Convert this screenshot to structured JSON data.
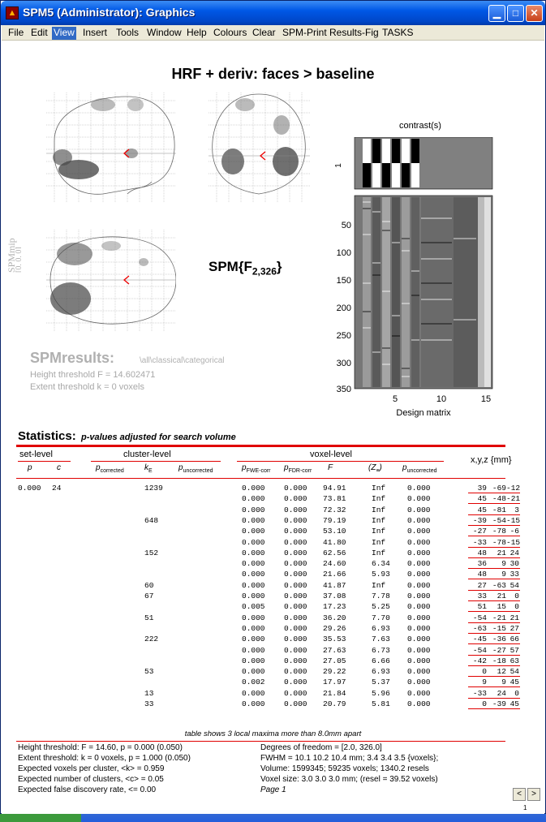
{
  "window": {
    "title": "SPM5 (Administrator): Graphics",
    "icon": "matlab-icon"
  },
  "menu": [
    "File",
    "Edit",
    "View",
    "Insert",
    "Tools",
    "Window",
    "Help",
    "Colours",
    "Clear",
    "SPM-Print",
    "Results-Fig",
    "TASKS"
  ],
  "menu_active": "View",
  "figure": {
    "title": "HRF + deriv: faces > baseline",
    "spmmip": "SPMmip",
    "coords": "[0, 0, 0]",
    "stat_base": "SPM{F",
    "stat_sub": "2,326",
    "stat_close": "}",
    "results_title": "SPMresults:",
    "results_path": "\\all\\classical\\categorical",
    "height_threshold": "Height threshold F = 14.602471",
    "extent_threshold": "Extent threshold k = 0 voxels"
  },
  "design": {
    "contrast_label": "contrast(s)",
    "contrast_row": "1",
    "yticks": [
      "50",
      "100",
      "150",
      "200",
      "250",
      "300",
      "350"
    ],
    "xticks": [
      "5",
      "10",
      "15"
    ],
    "xlabel": "Design matrix"
  },
  "stats": {
    "title": "Statistics:",
    "subtitle": "p-values adjusted for search volume",
    "set_level": "set-level",
    "cluster_level": "cluster-level",
    "voxel_level": "voxel-level",
    "xyz": "x,y,z {mm}",
    "col_p": "p",
    "col_c": "c",
    "col_pcorr": "p",
    "col_pcorr_sub": "corrected",
    "col_ke": "k",
    "col_ke_sub": "E",
    "col_punc": "p",
    "col_punc_sub": "uncorrected",
    "col_pfwe": "p",
    "col_pfwe_sub": "FWE-corr",
    "col_pfdr": "p",
    "col_pfdr_sub": "FDR-corr",
    "col_f": "F",
    "col_z": "(Z",
    "col_z_sub": "≡",
    "col_z_close": ")",
    "col_vpunc": "p",
    "col_vpunc_sub": "uncorrected",
    "rows": [
      {
        "sp": "0.000",
        "sc": "24",
        "ke": "1239",
        "fwe": "0.000",
        "fdr": "0.000",
        "f": "94.91",
        "z": "Inf",
        "pu": "0.000",
        "x": "39",
        "y": "-69",
        "zz": "-12"
      },
      {
        "sp": "",
        "sc": "",
        "ke": "",
        "fwe": "0.000",
        "fdr": "0.000",
        "f": "73.81",
        "z": "Inf",
        "pu": "0.000",
        "x": "45",
        "y": "-48",
        "zz": "-21"
      },
      {
        "sp": "",
        "sc": "",
        "ke": "",
        "fwe": "0.000",
        "fdr": "0.000",
        "f": "72.32",
        "z": "Inf",
        "pu": "0.000",
        "x": "45",
        "y": "-81",
        "zz": "3"
      },
      {
        "sp": "",
        "sc": "",
        "ke": "648",
        "fwe": "0.000",
        "fdr": "0.000",
        "f": "79.19",
        "z": "Inf",
        "pu": "0.000",
        "x": "-39",
        "y": "-54",
        "zz": "-15"
      },
      {
        "sp": "",
        "sc": "",
        "ke": "",
        "fwe": "0.000",
        "fdr": "0.000",
        "f": "53.10",
        "z": "Inf",
        "pu": "0.000",
        "x": "-27",
        "y": "-78",
        "zz": "-6"
      },
      {
        "sp": "",
        "sc": "",
        "ke": "",
        "fwe": "0.000",
        "fdr": "0.000",
        "f": "41.80",
        "z": "Inf",
        "pu": "0.000",
        "x": "-33",
        "y": "-78",
        "zz": "-15"
      },
      {
        "sp": "",
        "sc": "",
        "ke": "152",
        "fwe": "0.000",
        "fdr": "0.000",
        "f": "62.56",
        "z": "Inf",
        "pu": "0.000",
        "x": "48",
        "y": "21",
        "zz": "24"
      },
      {
        "sp": "",
        "sc": "",
        "ke": "",
        "fwe": "0.000",
        "fdr": "0.000",
        "f": "24.60",
        "z": "6.34",
        "pu": "0.000",
        "x": "36",
        "y": "9",
        "zz": "30"
      },
      {
        "sp": "",
        "sc": "",
        "ke": "",
        "fwe": "0.000",
        "fdr": "0.000",
        "f": "21.66",
        "z": "5.93",
        "pu": "0.000",
        "x": "48",
        "y": "9",
        "zz": "33"
      },
      {
        "sp": "",
        "sc": "",
        "ke": "60",
        "fwe": "0.000",
        "fdr": "0.000",
        "f": "41.87",
        "z": "Inf",
        "pu": "0.000",
        "x": "27",
        "y": "-63",
        "zz": "54"
      },
      {
        "sp": "",
        "sc": "",
        "ke": "67",
        "fwe": "0.000",
        "fdr": "0.000",
        "f": "37.08",
        "z": "7.78",
        "pu": "0.000",
        "x": "33",
        "y": "21",
        "zz": "0"
      },
      {
        "sp": "",
        "sc": "",
        "ke": "",
        "fwe": "0.005",
        "fdr": "0.000",
        "f": "17.23",
        "z": "5.25",
        "pu": "0.000",
        "x": "51",
        "y": "15",
        "zz": "0"
      },
      {
        "sp": "",
        "sc": "",
        "ke": "51",
        "fwe": "0.000",
        "fdr": "0.000",
        "f": "36.20",
        "z": "7.70",
        "pu": "0.000",
        "x": "-54",
        "y": "-21",
        "zz": "21"
      },
      {
        "sp": "",
        "sc": "",
        "ke": "",
        "fwe": "0.000",
        "fdr": "0.000",
        "f": "29.26",
        "z": "6.93",
        "pu": "0.000",
        "x": "-63",
        "y": "-15",
        "zz": "27"
      },
      {
        "sp": "",
        "sc": "",
        "ke": "222",
        "fwe": "0.000",
        "fdr": "0.000",
        "f": "35.53",
        "z": "7.63",
        "pu": "0.000",
        "x": "-45",
        "y": "-36",
        "zz": "66"
      },
      {
        "sp": "",
        "sc": "",
        "ke": "",
        "fwe": "0.000",
        "fdr": "0.000",
        "f": "27.63",
        "z": "6.73",
        "pu": "0.000",
        "x": "-54",
        "y": "-27",
        "zz": "57"
      },
      {
        "sp": "",
        "sc": "",
        "ke": "",
        "fwe": "0.000",
        "fdr": "0.000",
        "f": "27.05",
        "z": "6.66",
        "pu": "0.000",
        "x": "-42",
        "y": "-18",
        "zz": "63"
      },
      {
        "sp": "",
        "sc": "",
        "ke": "53",
        "fwe": "0.000",
        "fdr": "0.000",
        "f": "29.22",
        "z": "6.93",
        "pu": "0.000",
        "x": "0",
        "y": "12",
        "zz": "54"
      },
      {
        "sp": "",
        "sc": "",
        "ke": "",
        "fwe": "0.002",
        "fdr": "0.000",
        "f": "17.97",
        "z": "5.37",
        "pu": "0.000",
        "x": "9",
        "y": "9",
        "zz": "45"
      },
      {
        "sp": "",
        "sc": "",
        "ke": "13",
        "fwe": "0.000",
        "fdr": "0.000",
        "f": "21.84",
        "z": "5.96",
        "pu": "0.000",
        "x": "-33",
        "y": "24",
        "zz": "0"
      },
      {
        "sp": "",
        "sc": "",
        "ke": "33",
        "fwe": "0.000",
        "fdr": "0.000",
        "f": "20.79",
        "z": "5.81",
        "pu": "0.000",
        "x": "0",
        "y": "-39",
        "zz": "45"
      }
    ],
    "footnote": "table shows 3 local maxima more than 8.0mm apart"
  },
  "footer": {
    "left": [
      "Height threshold: F = 14.60, p = 0.000 (0.050)",
      "Extent threshold: k = 0 voxels, p = 1.000 (0.050)",
      "Expected voxels per cluster, <k> = 0.959",
      "Expected number of clusters, <c> = 0.05",
      "Expected false discovery rate, <= 0.00"
    ],
    "right": [
      "Degrees of freedom = [2.0, 326.0]",
      "FWHM = 10.1 10.2 10.4 mm; 3.4 3.4 3.5 {voxels};",
      "Volume: 1599345; 59235 voxels; 1340.2 resels",
      "Voxel size: 3.0 3.0 3.0 mm; (resel = 39.52 voxels)",
      "Page 1"
    ],
    "prev": "<",
    "next": ">",
    "page": "1"
  }
}
